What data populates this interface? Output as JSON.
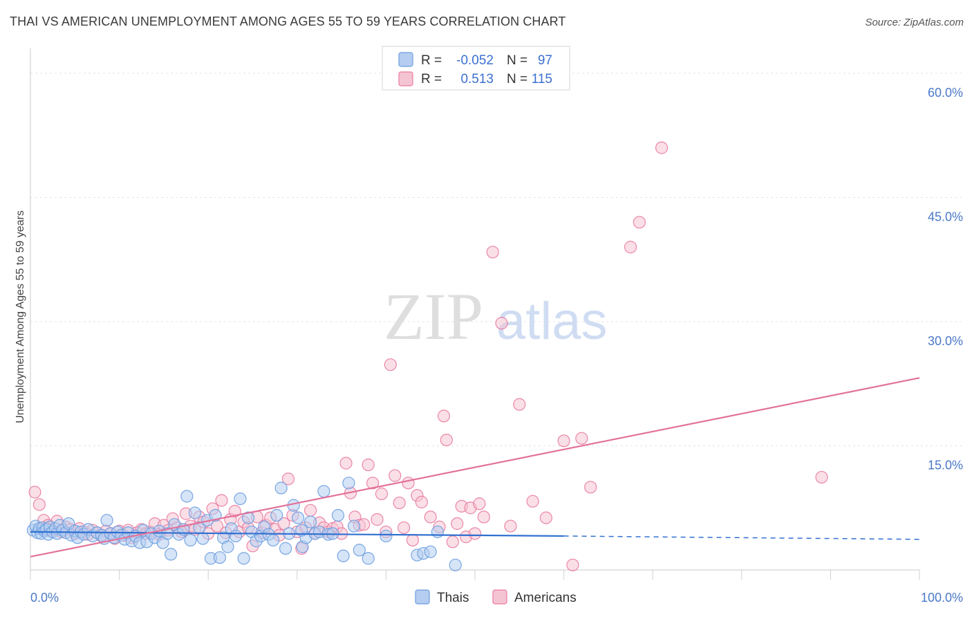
{
  "header": {
    "title": "THAI VS AMERICAN UNEMPLOYMENT AMONG AGES 55 TO 59 YEARS CORRELATION CHART",
    "source": "Source: ZipAtlas.com"
  },
  "watermark": {
    "zip": "ZIP",
    "atlas": "atlas"
  },
  "colors": {
    "thais": "#6a9de0",
    "thais_fill": "#b5cdf0",
    "americans": "#e97a9f",
    "americans_fill": "#f5c4d3",
    "thais_line": "#2f6fd0",
    "americans_line": "#e3719a",
    "axis_label": "#4a78c8"
  },
  "legend": {
    "rows": [
      {
        "r_label": "R =",
        "r_value": "-0.052",
        "n_label": "N =",
        "n_value": "97"
      },
      {
        "r_label": "R =",
        "r_value": "0.513",
        "n_label": "N =",
        "n_value": "115"
      }
    ]
  },
  "chart_data": {
    "type": "scatter",
    "title": "THAI VS AMERICAN UNEMPLOYMENT AMONG AGES 55 TO 59 YEARS CORRELATION CHART",
    "xlabel": "",
    "ylabel": "Unemployment Among Ages 55 to 59 years",
    "xlim": [
      0,
      100
    ],
    "ylim": [
      0,
      63
    ],
    "x_tick_labels": [
      "0.0%",
      "100.0%"
    ],
    "y_ticks": [
      15,
      30,
      45,
      60
    ],
    "y_tick_labels": [
      "15.0%",
      "30.0%",
      "45.0%",
      "60.0%"
    ],
    "legend_labels": [
      "Thais",
      "Americans"
    ],
    "series": [
      {
        "name": "Thais",
        "trend": {
          "x0": 0,
          "y0": 4.6,
          "x1": 60,
          "y1": 4.1,
          "dashed_to_x": 100,
          "dashed_to_y": 3.7
        },
        "points": [
          [
            0.3,
            4.8
          ],
          [
            0.6,
            5.3
          ],
          [
            0.8,
            4.5
          ],
          [
            1.0,
            5.0
          ],
          [
            1.2,
            4.4
          ],
          [
            1.4,
            5.1
          ],
          [
            1.6,
            4.7
          ],
          [
            1.8,
            4.9
          ],
          [
            2.0,
            4.3
          ],
          [
            2.2,
            5.2
          ],
          [
            2.5,
            4.6
          ],
          [
            2.8,
            5.0
          ],
          [
            3.0,
            4.4
          ],
          [
            3.3,
            5.4
          ],
          [
            3.6,
            4.8
          ],
          [
            4.0,
            4.5
          ],
          [
            4.3,
            5.6
          ],
          [
            4.6,
            4.2
          ],
          [
            5.0,
            4.7
          ],
          [
            5.3,
            3.9
          ],
          [
            5.7,
            4.6
          ],
          [
            6.0,
            4.3
          ],
          [
            6.5,
            4.9
          ],
          [
            7.0,
            4.1
          ],
          [
            7.5,
            4.5
          ],
          [
            8.0,
            4.2
          ],
          [
            8.3,
            3.8
          ],
          [
            8.6,
            6.0
          ],
          [
            9.0,
            4.4
          ],
          [
            9.4,
            3.9
          ],
          [
            9.8,
            4.6
          ],
          [
            10.2,
            4.2
          ],
          [
            10.6,
            3.7
          ],
          [
            11.0,
            4.5
          ],
          [
            11.4,
            3.5
          ],
          [
            11.8,
            4.1
          ],
          [
            12.3,
            3.3
          ],
          [
            12.7,
            4.8
          ],
          [
            13.1,
            3.4
          ],
          [
            13.6,
            4.4
          ],
          [
            14.0,
            3.9
          ],
          [
            14.5,
            4.7
          ],
          [
            14.9,
            3.3
          ],
          [
            15.4,
            4.4
          ],
          [
            15.8,
            1.9
          ],
          [
            16.2,
            5.5
          ],
          [
            16.7,
            4.3
          ],
          [
            17.2,
            4.9
          ],
          [
            17.6,
            8.9
          ],
          [
            18.0,
            3.6
          ],
          [
            18.5,
            6.9
          ],
          [
            19.0,
            5.1
          ],
          [
            19.4,
            3.8
          ],
          [
            19.9,
            6.0
          ],
          [
            20.3,
            1.4
          ],
          [
            20.8,
            6.6
          ],
          [
            21.3,
            1.5
          ],
          [
            21.7,
            3.9
          ],
          [
            22.2,
            2.8
          ],
          [
            22.6,
            5.0
          ],
          [
            23.1,
            4.1
          ],
          [
            23.6,
            8.6
          ],
          [
            24.0,
            1.4
          ],
          [
            24.5,
            6.3
          ],
          [
            24.9,
            4.6
          ],
          [
            25.4,
            3.5
          ],
          [
            25.9,
            4.1
          ],
          [
            26.3,
            5.2
          ],
          [
            26.8,
            4.3
          ],
          [
            27.3,
            3.6
          ],
          [
            27.7,
            6.6
          ],
          [
            28.2,
            9.9
          ],
          [
            28.7,
            2.6
          ],
          [
            29.1,
            4.4
          ],
          [
            29.6,
            7.8
          ],
          [
            30.1,
            6.3
          ],
          [
            30.6,
            2.8
          ],
          [
            31.0,
            3.9
          ],
          [
            31.5,
            5.8
          ],
          [
            32.0,
            4.4
          ],
          [
            32.5,
            4.6
          ],
          [
            33.0,
            9.5
          ],
          [
            33.5,
            4.3
          ],
          [
            34.0,
            4.4
          ],
          [
            34.6,
            6.6
          ],
          [
            35.2,
            1.7
          ],
          [
            35.8,
            10.5
          ],
          [
            36.4,
            5.3
          ],
          [
            37.0,
            2.4
          ],
          [
            38.0,
            1.4
          ],
          [
            40.0,
            4.1
          ],
          [
            43.5,
            1.8
          ],
          [
            44.2,
            2.0
          ],
          [
            45.0,
            2.2
          ],
          [
            45.8,
            4.6
          ],
          [
            47.8,
            0.6
          ],
          [
            30.5,
            4.8
          ]
        ]
      },
      {
        "name": "Americans",
        "trend": {
          "x0": 0,
          "y0": 1.6,
          "x1": 100,
          "y1": 23.2
        },
        "points": [
          [
            0.5,
            9.4
          ],
          [
            1.0,
            7.9
          ],
          [
            1.5,
            6.0
          ],
          [
            2.0,
            5.4
          ],
          [
            2.5,
            4.8
          ],
          [
            3.0,
            5.9
          ],
          [
            3.5,
            4.6
          ],
          [
            4.0,
            5.2
          ],
          [
            4.5,
            4.9
          ],
          [
            5.0,
            4.4
          ],
          [
            5.5,
            5.0
          ],
          [
            6.0,
            4.6
          ],
          [
            6.5,
            4.3
          ],
          [
            7.0,
            4.8
          ],
          [
            7.5,
            4.5
          ],
          [
            8.0,
            4.1
          ],
          [
            8.5,
            4.7
          ],
          [
            9.0,
            4.4
          ],
          [
            9.5,
            3.8
          ],
          [
            10.0,
            4.7
          ],
          [
            10.5,
            4.2
          ],
          [
            11.0,
            4.8
          ],
          [
            11.5,
            3.9
          ],
          [
            12.0,
            4.5
          ],
          [
            12.5,
            4.9
          ],
          [
            13.0,
            4.4
          ],
          [
            13.5,
            4.6
          ],
          [
            14.0,
            5.6
          ],
          [
            14.5,
            4.3
          ],
          [
            15.0,
            5.4
          ],
          [
            15.5,
            4.8
          ],
          [
            16.0,
            6.2
          ],
          [
            16.5,
            5.1
          ],
          [
            17.0,
            4.6
          ],
          [
            17.5,
            6.8
          ],
          [
            18.0,
            5.3
          ],
          [
            18.5,
            4.9
          ],
          [
            19.0,
            6.4
          ],
          [
            19.5,
            5.8
          ],
          [
            20.0,
            4.4
          ],
          [
            20.5,
            7.4
          ],
          [
            21.0,
            5.3
          ],
          [
            21.5,
            8.4
          ],
          [
            22.0,
            4.5
          ],
          [
            22.5,
            6.1
          ],
          [
            23.0,
            7.1
          ],
          [
            23.5,
            4.6
          ],
          [
            24.0,
            5.8
          ],
          [
            24.5,
            5.1
          ],
          [
            25.0,
            2.9
          ],
          [
            25.5,
            6.4
          ],
          [
            26.0,
            4.5
          ],
          [
            26.5,
            5.4
          ],
          [
            27.0,
            6.3
          ],
          [
            27.5,
            4.9
          ],
          [
            28.0,
            4.2
          ],
          [
            28.5,
            5.6
          ],
          [
            29.0,
            11.0
          ],
          [
            29.5,
            6.6
          ],
          [
            30.0,
            4.6
          ],
          [
            30.5,
            2.6
          ],
          [
            31.0,
            5.1
          ],
          [
            31.5,
            7.2
          ],
          [
            32.0,
            4.4
          ],
          [
            32.5,
            5.7
          ],
          [
            33.0,
            5.1
          ],
          [
            33.5,
            4.6
          ],
          [
            34.0,
            5.0
          ],
          [
            34.5,
            5.2
          ],
          [
            35.0,
            4.4
          ],
          [
            35.5,
            12.9
          ],
          [
            36.0,
            9.3
          ],
          [
            36.5,
            6.4
          ],
          [
            37.0,
            5.4
          ],
          [
            37.5,
            5.5
          ],
          [
            38.0,
            12.7
          ],
          [
            38.5,
            10.5
          ],
          [
            39.0,
            6.1
          ],
          [
            39.5,
            9.2
          ],
          [
            40.0,
            4.6
          ],
          [
            40.5,
            24.8
          ],
          [
            41.0,
            11.4
          ],
          [
            41.5,
            8.1
          ],
          [
            42.0,
            5.1
          ],
          [
            42.5,
            10.5
          ],
          [
            43.0,
            3.6
          ],
          [
            43.5,
            9.0
          ],
          [
            44.0,
            8.2
          ],
          [
            45.0,
            6.4
          ],
          [
            46.0,
            5.2
          ],
          [
            46.5,
            18.6
          ],
          [
            46.8,
            15.7
          ],
          [
            47.5,
            3.4
          ],
          [
            48.0,
            5.6
          ],
          [
            48.5,
            7.7
          ],
          [
            49.0,
            4.0
          ],
          [
            49.5,
            7.5
          ],
          [
            50.0,
            4.4
          ],
          [
            50.5,
            8.0
          ],
          [
            51.0,
            6.4
          ],
          [
            52.0,
            38.4
          ],
          [
            53.0,
            29.8
          ],
          [
            54.0,
            5.3
          ],
          [
            55.0,
            20.0
          ],
          [
            56.5,
            8.3
          ],
          [
            58.0,
            6.3
          ],
          [
            60.0,
            15.6
          ],
          [
            61.0,
            0.6
          ],
          [
            62.0,
            15.9
          ],
          [
            63.0,
            10.0
          ],
          [
            67.5,
            39.0
          ],
          [
            68.5,
            42.0
          ],
          [
            71.0,
            51.0
          ],
          [
            89.0,
            11.2
          ],
          [
            1.8,
            5.0
          ]
        ]
      }
    ]
  }
}
